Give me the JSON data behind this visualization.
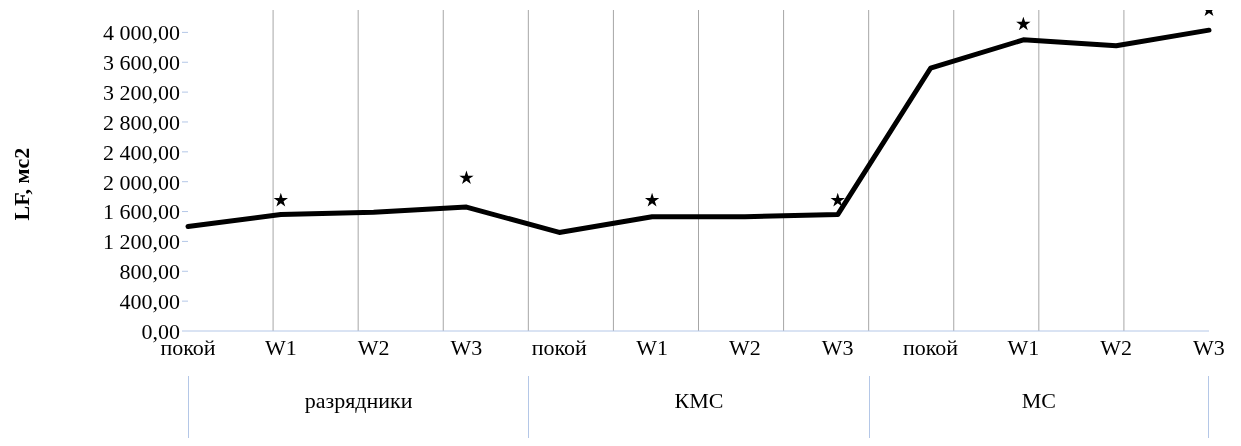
{
  "chart_data": {
    "type": "line",
    "ylabel": "LF, мс2",
    "categories": [
      "покой",
      "W1",
      "W2",
      "W3",
      "покой",
      "W1",
      "W2",
      "W3",
      "покой",
      "W1",
      "W2",
      "W3"
    ],
    "series": [
      {
        "color": "#000000",
        "values": [
          1400,
          1560,
          1590,
          1660,
          1320,
          1530,
          1530,
          1560,
          3520,
          3900,
          3820,
          4030
        ]
      },
      {
        "type": "scatter",
        "color": "#000000",
        "marker": "star",
        "values": [
          null,
          1750,
          null,
          2050,
          null,
          1750,
          null,
          1750,
          null,
          4110,
          null,
          4300
        ]
      }
    ],
    "annotations": [
      "разрядники",
      "КМС",
      "МС"
    ],
    "ylim": [
      0,
      4300
    ],
    "yticks": [
      {
        "value": 0,
        "label": "0,00"
      },
      {
        "value": 400,
        "label": "400,00"
      },
      {
        "value": 800,
        "label": "800,00"
      },
      {
        "value": 1200,
        "label": "1 200,00"
      },
      {
        "value": 1600,
        "label": "1 600,00"
      },
      {
        "value": 2000,
        "label": "2 000,00"
      },
      {
        "value": 2400,
        "label": "2 400,00"
      },
      {
        "value": 2800,
        "label": "2 800,00"
      },
      {
        "value": 3200,
        "label": "3 200,00"
      },
      {
        "value": 3600,
        "label": "3 600,00"
      },
      {
        "value": 4000,
        "label": "4 000,00"
      }
    ],
    "grid": "x",
    "legend": false,
    "marker": "none"
  }
}
